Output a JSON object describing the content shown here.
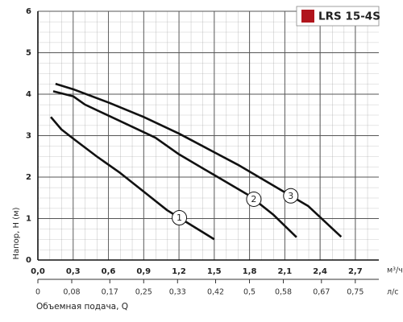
{
  "chart_data": {
    "type": "line",
    "legend_title": "LRS 15-4S",
    "legend_color": "#b0141c",
    "legend": "upper right",
    "x_unit": "м³/ч",
    "x2_unit": "л/с",
    "ylabel": "Напор, H (м)",
    "xlabel": "Объемная подача, Q",
    "xlim": [
      0,
      2.9
    ],
    "ylim": [
      0,
      6
    ],
    "xticks": [
      {
        "value": 0,
        "label": "0,0"
      },
      {
        "value": 0.3,
        "label": "0,3"
      },
      {
        "value": 0.6,
        "label": "0,6"
      },
      {
        "value": 0.9,
        "label": "0,9"
      },
      {
        "value": 1.2,
        "label": "1,2"
      },
      {
        "value": 1.5,
        "label": "1,5"
      },
      {
        "value": 1.8,
        "label": "1,8"
      },
      {
        "value": 2.1,
        "label": "2,1"
      },
      {
        "value": 2.4,
        "label": "2,4"
      },
      {
        "value": 2.7,
        "label": "2,7"
      }
    ],
    "yticks": [
      0,
      1,
      2,
      3,
      4,
      5,
      6
    ],
    "x2lim": [
      0,
      0.8056
    ],
    "x2ticks": [
      0,
      {
        "value": 0.08,
        "label": "0,08"
      },
      {
        "value": 0.17,
        "label": "0,17"
      },
      {
        "value": 0.25,
        "label": "0,25"
      },
      {
        "value": 0.33,
        "label": "0,33"
      },
      {
        "value": 0.42,
        "label": "0,42"
      },
      {
        "value": 0.5,
        "label": "0,5"
      },
      {
        "value": 0.58,
        "label": "0,58"
      },
      {
        "value": 0.67,
        "label": "0,67"
      },
      {
        "value": 0.75,
        "label": "0,75"
      }
    ],
    "grid": true,
    "series": [
      {
        "name": "1",
        "color": "#111111",
        "x": [
          0.11,
          0.2,
          0.3,
          0.5,
          0.7,
          0.9,
          1.1,
          1.3,
          1.5
        ],
        "values": [
          3.45,
          3.15,
          2.93,
          2.5,
          2.1,
          1.65,
          1.2,
          0.85,
          0.5
        ]
      },
      {
        "name": "2",
        "color": "#111111",
        "x": [
          0.13,
          0.3,
          0.4,
          0.7,
          1.0,
          1.2,
          1.5,
          1.8,
          2.0,
          2.2
        ],
        "values": [
          4.07,
          3.95,
          3.75,
          3.35,
          2.95,
          2.55,
          2.05,
          1.55,
          1.1,
          0.55
        ]
      },
      {
        "name": "3",
        "color": "#111111",
        "x": [
          0.15,
          0.3,
          0.6,
          0.9,
          1.2,
          1.5,
          1.7,
          2.0,
          2.3,
          2.58
        ],
        "values": [
          4.25,
          4.12,
          3.8,
          3.45,
          3.05,
          2.6,
          2.3,
          1.8,
          1.3,
          0.56
        ]
      }
    ]
  }
}
